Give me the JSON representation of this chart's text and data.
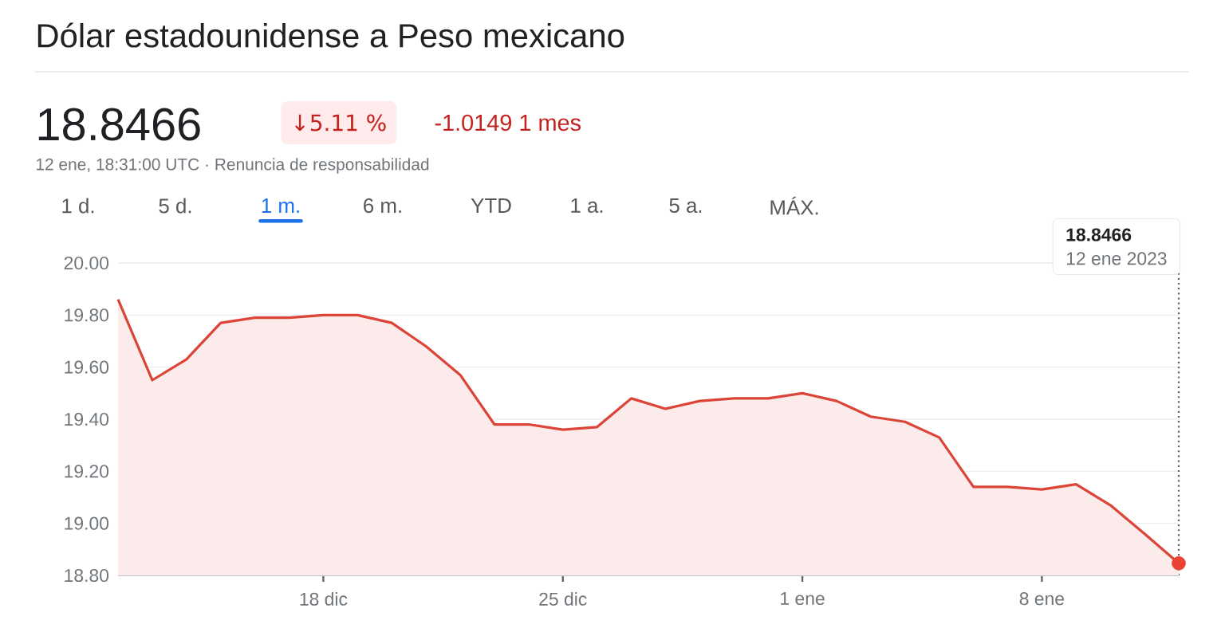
{
  "chart_data": {
    "type": "area",
    "title": "Dólar estadounidense a Peso mexicano",
    "annotations": [
      "18.8466",
      "↓5.11 %",
      "-1.0149 1 mes",
      "12 ene, 18:31:00 UTC · Renuncia de responsabilidad",
      "1 d.",
      "5 d.",
      "1 m.",
      "6 m.",
      "YTD",
      "1 a.",
      "5 a.",
      "MÁX.",
      "18.8466",
      "12 ene 2023"
    ],
    "x": [
      "2022-12-12",
      "2022-12-13",
      "2022-12-14",
      "2022-12-15",
      "2022-12-16",
      "2022-12-17",
      "2022-12-18",
      "2022-12-19",
      "2022-12-20",
      "2022-12-21",
      "2022-12-22",
      "2022-12-23",
      "2022-12-24",
      "2022-12-25",
      "2022-12-26",
      "2022-12-27",
      "2022-12-28",
      "2022-12-29",
      "2022-12-30",
      "2022-12-31",
      "2023-01-01",
      "2023-01-02",
      "2023-01-03",
      "2023-01-04",
      "2023-01-05",
      "2023-01-06",
      "2023-01-07",
      "2023-01-08",
      "2023-01-09",
      "2023-01-10",
      "2023-01-11",
      "2023-01-12"
    ],
    "series": [
      {
        "color": "#db4437",
        "values": [
          19.86,
          19.55,
          19.63,
          19.77,
          19.79,
          19.79,
          19.8,
          19.8,
          19.77,
          19.68,
          19.57,
          19.38,
          19.38,
          19.36,
          19.37,
          19.48,
          19.44,
          19.47,
          19.48,
          19.48,
          19.5,
          19.47,
          19.41,
          19.39,
          19.33,
          19.14,
          19.14,
          19.13,
          19.15,
          19.07,
          18.96,
          18.8466
        ]
      },
      {
        "type": "scatter",
        "color": "#ea4335",
        "x": [
          "2023-01-12"
        ],
        "values": [
          18.8466
        ]
      }
    ],
    "xlim": [
      "2022-12-12",
      "2023-01-12"
    ],
    "xticks": [
      {
        "value": "2022-12-18",
        "label": "18 dic"
      },
      {
        "value": "2022-12-25",
        "label": "25 dic"
      },
      {
        "value": "2023-01-01",
        "label": "1 ene"
      },
      {
        "value": "2023-01-08",
        "label": "8 ene"
      }
    ],
    "ylim": [
      18.8,
      20.0
    ],
    "yticks": [
      {
        "value": 18.8,
        "label": "18.80"
      },
      {
        "value": 19.0,
        "label": "19.00"
      },
      {
        "value": 19.2,
        "label": "19.20"
      },
      {
        "value": 19.4,
        "label": "19.40"
      },
      {
        "value": 19.6,
        "label": "19.60"
      },
      {
        "value": 19.8,
        "label": "19.80"
      },
      {
        "value": 20.0,
        "label": "20.00"
      }
    ],
    "grid": "y",
    "ref_lines": [
      {
        "axis": "x",
        "value": "2023-01-12",
        "color": "#5f6368",
        "line_style": "dotted"
      }
    ]
  }
}
